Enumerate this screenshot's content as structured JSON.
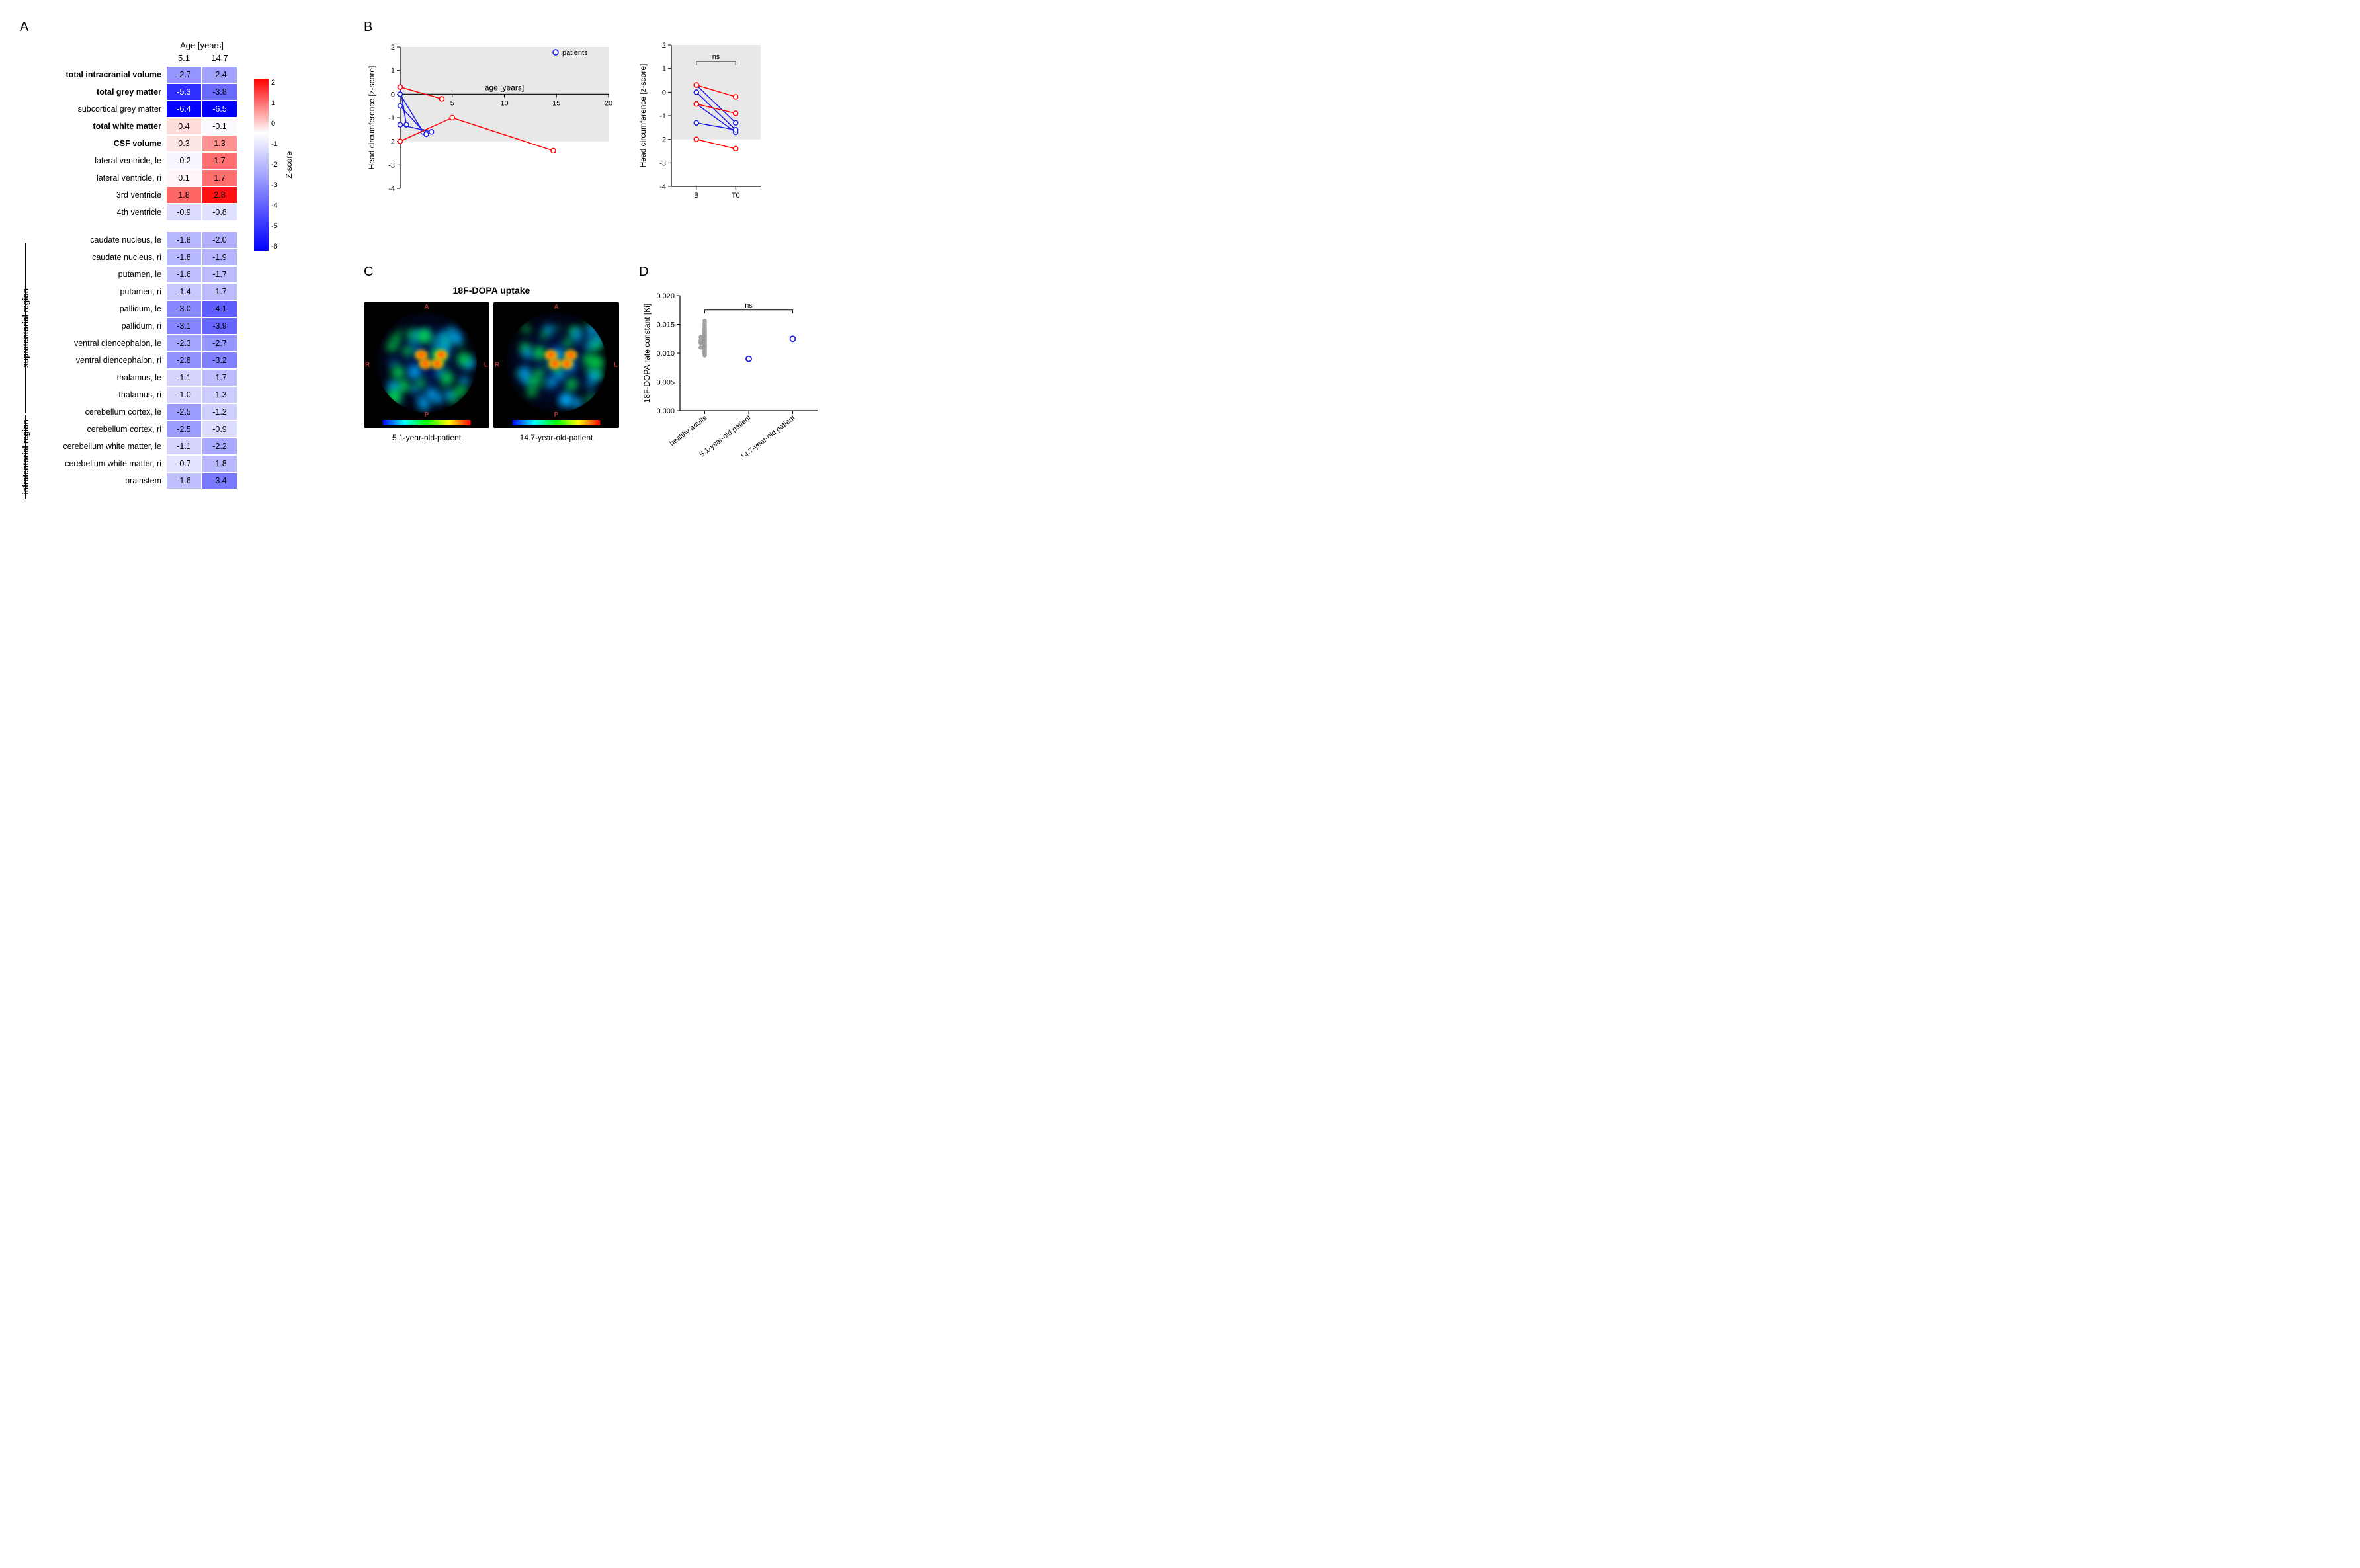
{
  "colors": {
    "heatmap_gradient": [
      "#0000ff",
      "#ffffff",
      "#ff0000"
    ],
    "heatmap_zmin": -6.5,
    "heatmap_zmax": 3,
    "patient_blue": "#1a1ae6",
    "patient_red": "#ff0000",
    "grey_area": "#e8e8e8",
    "grey_dot": "#a8a8a8",
    "axis": "#000000"
  },
  "panelA": {
    "label": "A",
    "header_title": "Age [years]",
    "columns": [
      "5.1",
      "14.7"
    ],
    "colorbar_label": "Z-score",
    "colorbar_ticks": [
      "2",
      "1",
      "0",
      "-1",
      "-2",
      "-3",
      "-4",
      "-5",
      "-6"
    ],
    "block1": [
      {
        "label": "total intracranial volume",
        "bold": true,
        "vals": [
          -2.7,
          -2.4
        ]
      },
      {
        "label": "total grey matter",
        "bold": true,
        "vals": [
          -5.3,
          -3.8
        ]
      },
      {
        "label": "subcortical grey matter",
        "bold": false,
        "vals": [
          -6.4,
          -6.5
        ]
      },
      {
        "label": "total white matter",
        "bold": true,
        "vals": [
          0.4,
          -0.1
        ]
      },
      {
        "label": "CSF volume",
        "bold": true,
        "vals": [
          0.3,
          1.3
        ]
      },
      {
        "label": "lateral ventricle, le",
        "bold": false,
        "vals": [
          -0.2,
          1.7
        ]
      },
      {
        "label": "lateral ventricle, ri",
        "bold": false,
        "vals": [
          0.1,
          1.7
        ]
      },
      {
        "label": "3rd ventricle",
        "bold": false,
        "vals": [
          1.8,
          2.8
        ]
      },
      {
        "label": "4th ventricle",
        "bold": false,
        "vals": [
          -0.9,
          -0.8
        ]
      }
    ],
    "block2_bracket_a": "supratentorial region",
    "block2a": [
      {
        "label": "caudate nucleus, le",
        "vals": [
          -1.8,
          -2.0
        ]
      },
      {
        "label": "caudate nucleus, ri",
        "vals": [
          -1.8,
          -1.9
        ]
      },
      {
        "label": "putamen, le",
        "vals": [
          -1.6,
          -1.7
        ]
      },
      {
        "label": "putamen, ri",
        "vals": [
          -1.4,
          -1.7
        ]
      },
      {
        "label": "pallidum, le",
        "vals": [
          -3.0,
          -4.1
        ]
      },
      {
        "label": "pallidum, ri",
        "vals": [
          -3.1,
          -3.9
        ]
      },
      {
        "label": "ventral diencephalon, le",
        "vals": [
          -2.3,
          -2.7
        ]
      },
      {
        "label": "ventral diencephalon, ri",
        "vals": [
          -2.8,
          -3.2
        ]
      },
      {
        "label": "thalamus, le",
        "vals": [
          -1.1,
          -1.7
        ]
      },
      {
        "label": "thalamus, ri",
        "vals": [
          -1.0,
          -1.3
        ]
      }
    ],
    "block2_bracket_b": "infratentorial region",
    "block2b": [
      {
        "label": "cerebellum cortex, le",
        "vals": [
          -2.5,
          -1.2
        ]
      },
      {
        "label": "cerebellum cortex, ri",
        "vals": [
          -2.5,
          -0.9
        ]
      },
      {
        "label": "cerebellum white matter, le",
        "vals": [
          -1.1,
          -2.2
        ]
      },
      {
        "label": "cerebellum white matter, ri",
        "vals": [
          -0.7,
          -1.8
        ]
      },
      {
        "label": "brainstem",
        "vals": [
          -1.6,
          -3.4
        ]
      }
    ]
  },
  "panelB": {
    "label": "B",
    "chart1": {
      "type": "scatter-line",
      "xlabel": "age [years]",
      "ylabel": "Head circumference [z-score]",
      "xlim": [
        0,
        20
      ],
      "xticks": [
        0,
        5,
        10,
        15,
        20
      ],
      "ylim": [
        -4,
        2
      ],
      "yticks": [
        -4,
        -3,
        -2,
        -1,
        0,
        1,
        2
      ],
      "grey_band": [
        -2,
        2
      ],
      "legend": "patients",
      "series": [
        {
          "color": "patient_blue",
          "points": [
            [
              0.0,
              0.3
            ],
            [
              0.6,
              -1.3
            ]
          ]
        },
        {
          "color": "patient_blue",
          "points": [
            [
              0.0,
              0.0
            ],
            [
              2.2,
              -1.6
            ]
          ]
        },
        {
          "color": "patient_blue",
          "points": [
            [
              0.0,
              -0.5
            ],
            [
              2.5,
              -1.7
            ]
          ]
        },
        {
          "color": "patient_blue",
          "points": [
            [
              0.0,
              -1.3
            ],
            [
              3.0,
              -1.6
            ]
          ]
        },
        {
          "color": "patient_red",
          "points": [
            [
              0.0,
              0.3
            ],
            [
              4.0,
              -0.2
            ]
          ]
        },
        {
          "color": "patient_red",
          "points": [
            [
              0.0,
              -2.0
            ],
            [
              5.0,
              -1.0
            ],
            [
              14.7,
              -2.4
            ]
          ]
        }
      ]
    },
    "chart2": {
      "type": "paired-dot",
      "ylabel": "Head circumference [z-score]",
      "ylim": [
        -4,
        2
      ],
      "yticks": [
        -4,
        -3,
        -2,
        -1,
        0,
        1,
        2
      ],
      "grey_band": [
        -2,
        2
      ],
      "xcats": [
        "B",
        "T0"
      ],
      "sig_label": "ns",
      "pairs": [
        {
          "color": "patient_blue",
          "B": 0.3,
          "T0": -1.3
        },
        {
          "color": "patient_blue",
          "B": 0.0,
          "T0": -1.6
        },
        {
          "color": "patient_blue",
          "B": -0.5,
          "T0": -1.7
        },
        {
          "color": "patient_blue",
          "B": -1.3,
          "T0": -1.6
        },
        {
          "color": "patient_red",
          "B": 0.3,
          "T0": -0.2
        },
        {
          "color": "patient_red",
          "B": -0.5,
          "T0": -0.9
        },
        {
          "color": "patient_red",
          "B": -2.0,
          "T0": -2.4
        }
      ]
    }
  },
  "panelC": {
    "label": "C",
    "title": "18F-DOPA uptake",
    "captions": [
      "5.1-year-old-patient",
      "14.7-year-old-patient"
    ],
    "orientation_markers": {
      "top": "A",
      "bottom": "P",
      "left": "R",
      "right": "L"
    }
  },
  "panelD": {
    "label": "D",
    "type": "dotplot",
    "ylabel": "18F-DOPA rate constant [Ki]",
    "ylim": [
      0,
      0.02
    ],
    "yticks": [
      0.0,
      0.005,
      0.01,
      0.015,
      0.02
    ],
    "xcats": [
      "healthy adults",
      "5.1-year-old patient",
      "14.7-year-old patient"
    ],
    "sig_label": "ns",
    "healthy_values": [
      0.0096,
      0.0098,
      0.01,
      0.0102,
      0.0104,
      0.0106,
      0.0108,
      0.011,
      0.011,
      0.0112,
      0.0114,
      0.0115,
      0.0116,
      0.0118,
      0.0118,
      0.012,
      0.012,
      0.0122,
      0.0122,
      0.0124,
      0.0125,
      0.0126,
      0.0128,
      0.0128,
      0.013,
      0.0132,
      0.0133,
      0.0134,
      0.0136,
      0.0138,
      0.014,
      0.0142,
      0.0144,
      0.0148,
      0.0152,
      0.0156
    ],
    "patient_values": [
      0.009,
      0.0125
    ],
    "dot_colors": {
      "healthy": "#a8a8a8",
      "patient": "#1a1ae6"
    }
  }
}
